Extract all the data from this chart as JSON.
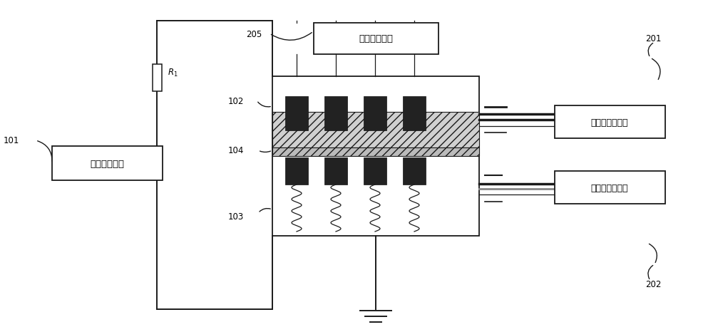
{
  "bg_color": "#ffffff",
  "line_color": "#1a1a1a",
  "dark_fill": "#222222",
  "labels": {
    "power_supply": "高压直流电源",
    "circuit_protect": "电路保护装置",
    "high_temp": "高温恒温循环浴",
    "low_temp": "低温恒温循环浴"
  },
  "numbers": {
    "n101": "101",
    "n102": "102",
    "n103": "103",
    "n104": "104",
    "n201": "201",
    "n202": "202",
    "n205": "205",
    "nR1": "$R_1$"
  },
  "layout": {
    "fig_w": 10.0,
    "fig_h": 4.6,
    "xlim": [
      0,
      10
    ],
    "ylim": [
      0,
      4.6
    ]
  }
}
